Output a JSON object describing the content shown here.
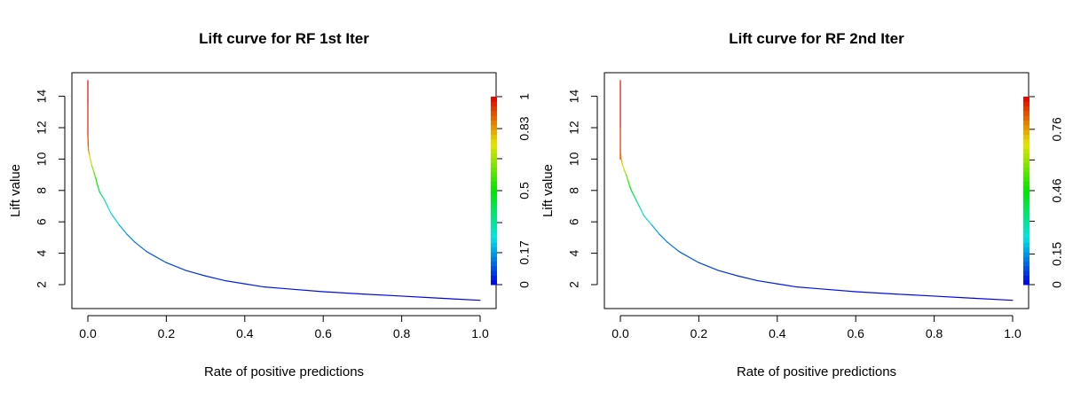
{
  "chart_data": [
    {
      "type": "line",
      "title": "Lift curve for RF 1st Iter",
      "xlabel": "Rate of positive predictions",
      "ylabel": "Lift value",
      "xlim": [
        0,
        1.0
      ],
      "ylim": [
        1,
        15
      ],
      "xticks": [
        "0.0",
        "0.2",
        "0.4",
        "0.6",
        "0.8",
        "1.0"
      ],
      "xtick_values": [
        0,
        0.2,
        0.4,
        0.6,
        0.8,
        1.0
      ],
      "yticks": [
        "2",
        "4",
        "6",
        "8",
        "10",
        "12",
        "14"
      ],
      "ytick_values": [
        2,
        4,
        6,
        8,
        10,
        12,
        14
      ],
      "grid": false,
      "colorkey": {
        "label_values": [
          0,
          0.17,
          0.5,
          0.83,
          1
        ],
        "labels": [
          "0",
          "0.17",
          "0.5",
          "0.83",
          "1"
        ],
        "range": [
          0,
          1
        ],
        "tick_values": [
          0,
          0.17,
          0.33,
          0.5,
          0.67,
          0.83,
          1
        ]
      },
      "series": [
        {
          "x": [
            0,
            0,
            0,
            0.001,
            0.002,
            0.004,
            0.006,
            0.01,
            0.015,
            0.02,
            0.025,
            0.03,
            0.04,
            0.05,
            0.06,
            0.08,
            0.1,
            0.12,
            0.15,
            0.2,
            0.25,
            0.3,
            0.35,
            0.4,
            0.45,
            0.5,
            0.6,
            0.7,
            0.8,
            0.9,
            1.0
          ],
          "y": [
            15.0,
            13.5,
            11.5,
            10.8,
            10.5,
            10.3,
            10.0,
            9.6,
            9.2,
            8.8,
            8.3,
            7.9,
            7.5,
            7.0,
            6.5,
            5.8,
            5.2,
            4.7,
            4.1,
            3.4,
            2.9,
            2.55,
            2.25,
            2.05,
            1.85,
            1.75,
            1.55,
            1.4,
            1.27,
            1.13,
            1.0
          ],
          "cutoff": [
            1.0,
            0.98,
            0.95,
            0.9,
            0.85,
            0.8,
            0.74,
            0.68,
            0.62,
            0.55,
            0.48,
            0.42,
            0.36,
            0.3,
            0.25,
            0.2,
            0.16,
            0.13,
            0.1,
            0.08,
            0.06,
            0.05,
            0.04,
            0.03,
            0.025,
            0.02,
            0.015,
            0.01,
            0.005,
            0.002,
            0
          ]
        }
      ]
    },
    {
      "type": "line",
      "title": "Lift curve for RF 2nd Iter",
      "xlabel": "Rate of positive predictions",
      "ylabel": "Lift value",
      "xlim": [
        0,
        1.0
      ],
      "ylim": [
        1,
        15
      ],
      "xticks": [
        "0.0",
        "0.2",
        "0.4",
        "0.6",
        "0.8",
        "1.0"
      ],
      "xtick_values": [
        0,
        0.2,
        0.4,
        0.6,
        0.8,
        1.0
      ],
      "yticks": [
        "2",
        "4",
        "6",
        "8",
        "10",
        "12",
        "14"
      ],
      "ytick_values": [
        2,
        4,
        6,
        8,
        10,
        12,
        14
      ],
      "grid": false,
      "colorkey": {
        "label_values": [
          0,
          0.15,
          0.46,
          0.76
        ],
        "labels": [
          "0",
          "0.15",
          "0.46",
          "0.76"
        ],
        "range": [
          0,
          0.92
        ],
        "tick_values": [
          0,
          0.15,
          0.31,
          0.46,
          0.61,
          0.76,
          0.92
        ]
      },
      "series": [
        {
          "x": [
            0,
            0,
            0,
            0.001,
            0.002,
            0.004,
            0.006,
            0.01,
            0.015,
            0.02,
            0.025,
            0.03,
            0.04,
            0.05,
            0.06,
            0.08,
            0.1,
            0.12,
            0.15,
            0.2,
            0.25,
            0.3,
            0.35,
            0.4,
            0.45,
            0.5,
            0.6,
            0.7,
            0.8,
            0.9,
            1.0
          ],
          "y": [
            15.0,
            12.0,
            10.0,
            10.3,
            10.0,
            9.8,
            9.6,
            9.3,
            9.0,
            8.6,
            8.2,
            7.9,
            7.4,
            6.9,
            6.4,
            5.8,
            5.2,
            4.7,
            4.1,
            3.4,
            2.9,
            2.55,
            2.25,
            2.05,
            1.85,
            1.75,
            1.55,
            1.4,
            1.27,
            1.13,
            1.0
          ],
          "cutoff": [
            0.92,
            0.9,
            0.85,
            0.82,
            0.78,
            0.74,
            0.7,
            0.65,
            0.58,
            0.52,
            0.46,
            0.4,
            0.34,
            0.29,
            0.24,
            0.19,
            0.15,
            0.12,
            0.1,
            0.07,
            0.055,
            0.045,
            0.035,
            0.028,
            0.022,
            0.018,
            0.013,
            0.009,
            0.005,
            0.002,
            0
          ]
        }
      ]
    }
  ]
}
